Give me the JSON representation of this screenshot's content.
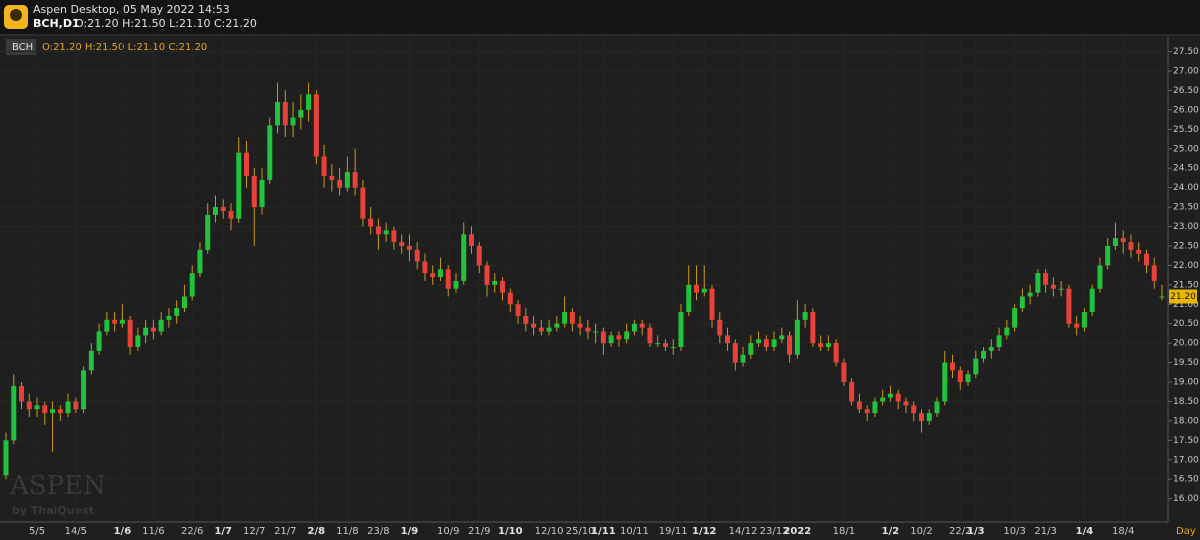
{
  "header": {
    "title": "Aspen Desktop, 05 May 2022 14:53",
    "symbol": "BCH,D1",
    "ohlc": "O:21.20 H:21.50 L:21.10 C:21.20"
  },
  "legend": {
    "symbol": "BCH",
    "ohlc": "O:21.20 H:21.50 L:21.10 C:21.20"
  },
  "watermark": {
    "brand": "ASPEN",
    "by": "by ThaiQuest"
  },
  "period": "Day",
  "chart_data": {
    "type": "candlestick",
    "up_color": "#22c33c",
    "down_color": "#e8413a",
    "wick_color": "#c99a1a",
    "grid": true,
    "last_price": {
      "value": 21.2,
      "label": "21.20"
    },
    "ylim": [
      15.4,
      27.9
    ],
    "yticks": [
      {
        "value": 16,
        "label": "16.00"
      },
      {
        "value": 16.5,
        "label": "16.50"
      },
      {
        "value": 17,
        "label": "17.00"
      },
      {
        "value": 17.5,
        "label": "17.50"
      },
      {
        "value": 18,
        "label": "18.00"
      },
      {
        "value": 18.5,
        "label": "18.50"
      },
      {
        "value": 19,
        "label": "19.00"
      },
      {
        "value": 19.5,
        "label": "19.50"
      },
      {
        "value": 20,
        "label": "20.00"
      },
      {
        "value": 20.5,
        "label": "20.50"
      },
      {
        "value": 21,
        "label": "21.00"
      },
      {
        "value": 21.5,
        "label": "21.50"
      },
      {
        "value": 22,
        "label": "22.00"
      },
      {
        "value": 22.5,
        "label": "22.50"
      },
      {
        "value": 23,
        "label": "23.00"
      },
      {
        "value": 23.5,
        "label": "23.50"
      },
      {
        "value": 24,
        "label": "24.00"
      },
      {
        "value": 24.5,
        "label": "24.50"
      },
      {
        "value": 25,
        "label": "25.00"
      },
      {
        "value": 25.5,
        "label": "25.50"
      },
      {
        "value": 26,
        "label": "26.00"
      },
      {
        "value": 26.5,
        "label": "26.50"
      },
      {
        "value": 27,
        "label": "27.00"
      },
      {
        "value": 27.5,
        "label": "27.50"
      }
    ],
    "categories": [
      null,
      null,
      null,
      null,
      "5/5",
      null,
      null,
      null,
      null,
      "14/5",
      null,
      null,
      null,
      null,
      null,
      "1/6",
      null,
      null,
      null,
      "11/6",
      null,
      null,
      null,
      null,
      "22/6",
      null,
      null,
      null,
      "1/7",
      null,
      null,
      null,
      "12/7",
      null,
      null,
      null,
      "21/7",
      null,
      null,
      null,
      "2/8",
      null,
      null,
      null,
      "11/8",
      null,
      null,
      null,
      "23/8",
      null,
      null,
      null,
      "1/9",
      null,
      null,
      null,
      null,
      "10/9",
      null,
      null,
      null,
      "21/9",
      null,
      null,
      null,
      "1/10",
      null,
      null,
      null,
      null,
      "12/10",
      null,
      null,
      null,
      "25/10",
      null,
      null,
      "1/11",
      null,
      null,
      null,
      "10/11",
      null,
      null,
      null,
      null,
      "19/11",
      null,
      null,
      null,
      "1/12",
      null,
      null,
      null,
      null,
      "14/12",
      null,
      null,
      null,
      "23/12",
      null,
      null,
      "2022",
      null,
      null,
      null,
      null,
      null,
      "18/1",
      null,
      null,
      null,
      null,
      null,
      "1/2",
      null,
      null,
      null,
      "10/2",
      null,
      null,
      null,
      null,
      "22/2",
      null,
      "1/3",
      null,
      null,
      null,
      null,
      "10/3",
      null,
      null,
      null,
      "21/3",
      null,
      null,
      null,
      null,
      "1/4",
      null,
      null,
      null,
      null,
      "18/4",
      null,
      null,
      null,
      null,
      null
    ],
    "ohlc": [
      [
        16.6,
        17.7,
        16.5,
        17.5
      ],
      [
        17.5,
        19.2,
        17.4,
        18.9
      ],
      [
        18.9,
        19.0,
        18.3,
        18.5
      ],
      [
        18.5,
        18.7,
        18.1,
        18.3
      ],
      [
        18.3,
        18.6,
        18.1,
        18.4
      ],
      [
        18.4,
        18.5,
        17.9,
        18.2
      ],
      [
        18.2,
        18.5,
        17.2,
        18.3
      ],
      [
        18.3,
        18.4,
        18.0,
        18.2
      ],
      [
        18.2,
        18.7,
        18.1,
        18.5
      ],
      [
        18.5,
        18.6,
        18.2,
        18.3
      ],
      [
        18.3,
        19.4,
        18.2,
        19.3
      ],
      [
        19.3,
        20.0,
        19.2,
        19.8
      ],
      [
        19.8,
        20.5,
        19.7,
        20.3
      ],
      [
        20.3,
        20.8,
        20.2,
        20.6
      ],
      [
        20.6,
        20.8,
        20.3,
        20.5
      ],
      [
        20.5,
        21.0,
        20.4,
        20.6
      ],
      [
        20.6,
        20.7,
        19.7,
        19.9
      ],
      [
        19.9,
        20.4,
        19.8,
        20.2
      ],
      [
        20.2,
        20.6,
        20.0,
        20.4
      ],
      [
        20.4,
        20.6,
        20.1,
        20.3
      ],
      [
        20.3,
        20.8,
        20.2,
        20.6
      ],
      [
        20.6,
        20.9,
        20.4,
        20.7
      ],
      [
        20.7,
        21.1,
        20.5,
        20.9
      ],
      [
        20.9,
        21.5,
        20.8,
        21.2
      ],
      [
        21.2,
        22.0,
        21.1,
        21.8
      ],
      [
        21.8,
        22.6,
        21.7,
        22.4
      ],
      [
        22.4,
        23.6,
        22.3,
        23.3
      ],
      [
        23.3,
        23.8,
        23.1,
        23.5
      ],
      [
        23.5,
        23.7,
        23.2,
        23.4
      ],
      [
        23.4,
        23.6,
        22.9,
        23.2
      ],
      [
        23.2,
        25.3,
        23.1,
        24.9
      ],
      [
        24.9,
        25.2,
        24.0,
        24.3
      ],
      [
        24.3,
        24.5,
        22.5,
        23.5
      ],
      [
        23.5,
        24.5,
        23.3,
        24.2
      ],
      [
        24.2,
        25.8,
        24.1,
        25.6
      ],
      [
        25.6,
        26.7,
        25.4,
        26.2
      ],
      [
        26.2,
        26.5,
        25.3,
        25.6
      ],
      [
        25.6,
        26.2,
        25.3,
        25.8
      ],
      [
        25.8,
        26.4,
        25.5,
        26.0
      ],
      [
        26.0,
        26.7,
        25.7,
        26.4
      ],
      [
        26.4,
        26.5,
        24.6,
        24.8
      ],
      [
        24.8,
        25.1,
        24.0,
        24.3
      ],
      [
        24.3,
        24.6,
        23.9,
        24.2
      ],
      [
        24.2,
        24.5,
        23.8,
        24.0
      ],
      [
        24.0,
        24.8,
        23.9,
        24.4
      ],
      [
        24.4,
        25.0,
        23.8,
        24.0
      ],
      [
        24.0,
        24.2,
        23.0,
        23.2
      ],
      [
        23.2,
        23.5,
        22.8,
        23.0
      ],
      [
        23.0,
        23.2,
        22.4,
        22.8
      ],
      [
        22.8,
        23.1,
        22.6,
        22.9
      ],
      [
        22.9,
        23.0,
        22.4,
        22.6
      ],
      [
        22.6,
        22.8,
        22.3,
        22.5
      ],
      [
        22.5,
        22.8,
        22.1,
        22.4
      ],
      [
        22.4,
        22.6,
        21.9,
        22.1
      ],
      [
        22.1,
        22.3,
        21.6,
        21.8
      ],
      [
        21.8,
        22.0,
        21.5,
        21.7
      ],
      [
        21.7,
        22.2,
        21.6,
        21.9
      ],
      [
        21.9,
        22.0,
        21.2,
        21.4
      ],
      [
        21.4,
        21.8,
        21.3,
        21.6
      ],
      [
        21.6,
        23.1,
        21.5,
        22.8
      ],
      [
        22.8,
        23.0,
        22.3,
        22.5
      ],
      [
        22.5,
        22.6,
        21.8,
        22.0
      ],
      [
        22.0,
        22.1,
        21.2,
        21.5
      ],
      [
        21.5,
        21.8,
        21.3,
        21.6
      ],
      [
        21.6,
        21.7,
        21.1,
        21.3
      ],
      [
        21.3,
        21.4,
        20.8,
        21.0
      ],
      [
        21.0,
        21.1,
        20.5,
        20.7
      ],
      [
        20.7,
        20.9,
        20.3,
        20.5
      ],
      [
        20.5,
        20.7,
        20.2,
        20.4
      ],
      [
        20.4,
        20.6,
        20.2,
        20.3
      ],
      [
        20.3,
        20.6,
        20.2,
        20.4
      ],
      [
        20.4,
        20.7,
        20.3,
        20.5
      ],
      [
        20.5,
        21.2,
        20.4,
        20.8
      ],
      [
        20.8,
        20.9,
        20.3,
        20.5
      ],
      [
        20.5,
        20.7,
        20.2,
        20.4
      ],
      [
        20.4,
        20.6,
        20.1,
        20.3
      ],
      [
        20.3,
        20.5,
        20.0,
        20.3
      ],
      [
        20.3,
        20.4,
        19.7,
        20.0
      ],
      [
        20.0,
        20.3,
        19.9,
        20.2
      ],
      [
        20.2,
        20.3,
        19.9,
        20.1
      ],
      [
        20.1,
        20.5,
        20.0,
        20.3
      ],
      [
        20.3,
        20.6,
        20.2,
        20.5
      ],
      [
        20.5,
        20.6,
        20.2,
        20.4
      ],
      [
        20.4,
        20.5,
        19.9,
        20.0
      ],
      [
        20.0,
        20.2,
        19.9,
        20.0
      ],
      [
        20.0,
        20.1,
        19.8,
        19.9
      ],
      [
        19.9,
        20.1,
        19.7,
        19.9
      ],
      [
        19.9,
        21.0,
        19.8,
        20.8
      ],
      [
        20.8,
        22.0,
        20.7,
        21.5
      ],
      [
        21.5,
        22.0,
        21.1,
        21.3
      ],
      [
        21.3,
        22.0,
        21.2,
        21.4
      ],
      [
        21.4,
        21.5,
        20.4,
        20.6
      ],
      [
        20.6,
        20.8,
        20.0,
        20.2
      ],
      [
        20.2,
        20.4,
        19.8,
        20.0
      ],
      [
        20.0,
        20.1,
        19.3,
        19.5
      ],
      [
        19.5,
        19.9,
        19.4,
        19.7
      ],
      [
        19.7,
        20.2,
        19.6,
        20.0
      ],
      [
        20.0,
        20.3,
        19.9,
        20.1
      ],
      [
        20.1,
        20.2,
        19.8,
        19.9
      ],
      [
        19.9,
        20.3,
        19.8,
        20.1
      ],
      [
        20.1,
        20.4,
        20.0,
        20.2
      ],
      [
        20.2,
        20.3,
        19.5,
        19.7
      ],
      [
        19.7,
        21.1,
        19.6,
        20.6
      ],
      [
        20.6,
        21.0,
        20.4,
        20.8
      ],
      [
        20.8,
        20.9,
        19.9,
        20.0
      ],
      [
        20.0,
        20.2,
        19.8,
        19.9
      ],
      [
        19.9,
        20.2,
        19.8,
        20.0
      ],
      [
        20.0,
        20.1,
        19.4,
        19.5
      ],
      [
        19.5,
        19.6,
        18.9,
        19.0
      ],
      [
        19.0,
        19.1,
        18.4,
        18.5
      ],
      [
        18.5,
        18.7,
        18.2,
        18.3
      ],
      [
        18.3,
        18.4,
        18.0,
        18.2
      ],
      [
        18.2,
        18.6,
        18.1,
        18.5
      ],
      [
        18.5,
        18.8,
        18.4,
        18.6
      ],
      [
        18.6,
        18.9,
        18.5,
        18.7
      ],
      [
        18.7,
        18.8,
        18.3,
        18.5
      ],
      [
        18.5,
        18.6,
        18.2,
        18.4
      ],
      [
        18.4,
        18.5,
        18.0,
        18.2
      ],
      [
        18.2,
        18.3,
        17.7,
        18.0
      ],
      [
        18.0,
        18.3,
        17.9,
        18.2
      ],
      [
        18.2,
        18.6,
        18.1,
        18.5
      ],
      [
        18.5,
        19.8,
        18.4,
        19.5
      ],
      [
        19.5,
        19.7,
        19.1,
        19.3
      ],
      [
        19.3,
        19.4,
        18.8,
        19.0
      ],
      [
        19.0,
        19.3,
        18.9,
        19.2
      ],
      [
        19.2,
        19.8,
        19.1,
        19.6
      ],
      [
        19.6,
        19.9,
        19.5,
        19.8
      ],
      [
        19.8,
        20.1,
        19.6,
        19.9
      ],
      [
        19.9,
        20.4,
        19.8,
        20.2
      ],
      [
        20.2,
        20.6,
        20.1,
        20.4
      ],
      [
        20.4,
        21.0,
        20.3,
        20.9
      ],
      [
        20.9,
        21.4,
        20.8,
        21.2
      ],
      [
        21.2,
        21.5,
        21.0,
        21.3
      ],
      [
        21.3,
        21.9,
        21.2,
        21.8
      ],
      [
        21.8,
        21.9,
        21.3,
        21.5
      ],
      [
        21.5,
        21.7,
        21.2,
        21.4
      ],
      [
        21.4,
        21.6,
        21.2,
        21.4
      ],
      [
        21.4,
        21.5,
        20.4,
        20.5
      ],
      [
        20.5,
        20.7,
        20.2,
        20.4
      ],
      [
        20.4,
        20.9,
        20.3,
        20.8
      ],
      [
        20.8,
        21.5,
        20.7,
        21.4
      ],
      [
        21.4,
        22.2,
        21.3,
        22.0
      ],
      [
        22.0,
        22.7,
        21.9,
        22.5
      ],
      [
        22.5,
        23.1,
        22.4,
        22.7
      ],
      [
        22.7,
        22.9,
        22.3,
        22.6
      ],
      [
        22.6,
        22.8,
        22.2,
        22.4
      ],
      [
        22.4,
        22.6,
        22.1,
        22.3
      ],
      [
        22.3,
        22.4,
        21.8,
        22.0
      ],
      [
        22.0,
        22.2,
        21.4,
        21.6
      ],
      [
        21.2,
        21.5,
        21.1,
        21.2
      ]
    ]
  }
}
